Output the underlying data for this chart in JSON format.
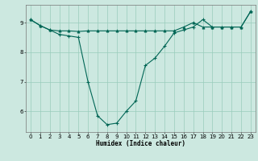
{
  "title": "",
  "xlabel": "Humidex (Indice chaleur)",
  "background_color": "#cce8e0",
  "grid_color": "#99ccbb",
  "line_color": "#006655",
  "xlim": [
    -0.5,
    23.5
  ],
  "ylim": [
    5.3,
    9.6
  ],
  "yticks": [
    6,
    7,
    8,
    9
  ],
  "xticks": [
    0,
    1,
    2,
    3,
    4,
    5,
    6,
    7,
    8,
    9,
    10,
    11,
    12,
    13,
    14,
    15,
    16,
    17,
    18,
    19,
    20,
    21,
    22,
    23
  ],
  "series1_x": [
    0,
    1,
    2,
    3,
    4,
    5,
    6,
    7,
    8,
    9,
    10,
    11,
    12,
    13,
    14,
    15,
    16,
    17,
    18,
    19,
    20,
    21,
    22,
    23
  ],
  "series1_y": [
    9.1,
    8.9,
    8.75,
    8.6,
    8.55,
    8.5,
    7.0,
    5.85,
    5.55,
    5.6,
    6.0,
    6.35,
    7.55,
    7.8,
    8.2,
    8.65,
    8.75,
    8.85,
    9.1,
    8.85,
    8.85,
    8.85,
    8.85,
    9.38
  ],
  "series2_x": [
    0,
    1,
    2,
    3,
    4,
    5,
    6,
    7,
    8,
    9,
    10,
    11,
    12,
    13,
    14,
    15,
    16,
    17,
    18,
    19,
    20,
    21,
    22,
    23
  ],
  "series2_y": [
    9.1,
    8.9,
    8.75,
    8.72,
    8.72,
    8.7,
    8.72,
    8.72,
    8.72,
    8.72,
    8.72,
    8.72,
    8.72,
    8.72,
    8.72,
    8.72,
    8.85,
    9.0,
    8.85,
    8.85,
    8.85,
    8.85,
    8.85,
    9.38
  ],
  "xlabel_fontsize": 5.5,
  "tick_fontsize": 5.0,
  "linewidth": 0.8,
  "markersize": 2.5
}
